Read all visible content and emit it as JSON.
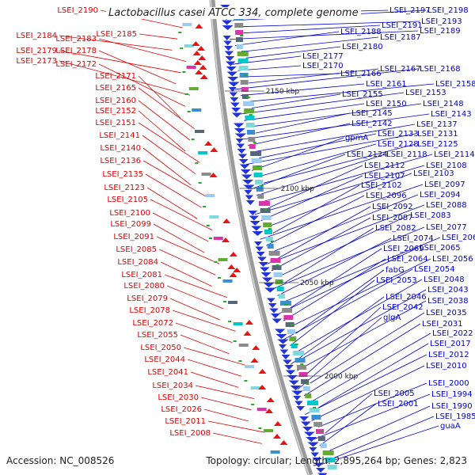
{
  "title": "Lactobacillus casei ATCC 334, complete genome",
  "footer": {
    "accession": "Accession: NC_008526",
    "summary": "Topology: circular; Length: 2,895,264 bp; Genes: 2,823"
  },
  "colors": {
    "left_label": "#dd0000",
    "right_label": "#0000cc",
    "backbone": "#999999",
    "gene_reverse": "#2233dd",
    "gene_forward": "#ee1111"
  },
  "ticks": [
    "2150 kbp",
    "2100 kbp",
    "2050 kbp",
    "2000 kbp"
  ],
  "left_labels": [
    "LSEI_2190",
    "LSEI_2185",
    "LSEI_2184",
    "LSEI_2183",
    "LSEI_2179",
    "LSEI_2178",
    "LSEI_2173",
    "LSEI_2172",
    "LSEI_2171",
    "LSEI_2165",
    "LSEI_2160",
    "LSEI_2152",
    "LSEI_2151",
    "LSEI_2141",
    "LSEI_2140",
    "LSEI_2136",
    "LSEI_2135",
    "LSEI_2123",
    "LSEI_2105",
    "LSEI_2100",
    "LSEI_2099",
    "LSEI_2091",
    "LSEI_2085",
    "LSEI_2084",
    "LSEI_2081",
    "LSEI_2080",
    "LSEI_2079",
    "LSEI_2078",
    "LSEI_2072",
    "LSEI_2055",
    "LSEI_2050",
    "LSEI_2044",
    "LSEI_2041",
    "LSEI_2034",
    "LSEI_2030",
    "LSEI_2026",
    "LSEI_2011",
    "LSEI_2008"
  ],
  "right_labels": [
    "LSEI_2197",
    "LSEI_2198",
    "LSEI_2193",
    "LSEI_2191",
    "LSEI_2189",
    "LSEI_2188",
    "LSEI_2187",
    "LSEI_2180",
    "LSEI_2177",
    "LSEI_2170",
    "LSEI_2166",
    "LSEI_2167",
    "LSEI_2168",
    "LSEI_2161",
    "LSEI_2158",
    "LSEI_2155",
    "LSEI_2153",
    "LSEI_2150",
    "LSEI_2148",
    "LSEI_2145",
    "LSEI_2143",
    "LSEI_2142",
    "LSEI_2137",
    "LSEI_2133",
    "LSEI_2131",
    "gpmA",
    "LSEI_2128",
    "LSEI_2125",
    "LSEI_2124",
    "LSEI_2118",
    "LSEI_2114",
    "LSEI_2112",
    "LSEI_2108",
    "LSEI_2107",
    "LSEI_2103",
    "LSEI_2102",
    "LSEI_2097",
    "LSEI_2096",
    "LSEI_2094",
    "LSEI_2092",
    "LSEI_2088",
    "LSEI_2087",
    "LSEI_2083",
    "LSEI_2082",
    "LSEI_2077",
    "LSEI_2074",
    "LSEI_2068",
    "LSEI_2069",
    "LSEI_2065",
    "LSEI_2064",
    "LSEI_2056",
    "fabG",
    "LSEI_2054",
    "LSEI_2053",
    "LSEI_2048",
    "LSEI_2043",
    "LSEI_2046",
    "LSEI_2038",
    "LSEI_2042",
    "LSEI_2035",
    "glgA",
    "LSEI_2031",
    "LSEI_2022",
    "LSEI_2017",
    "LSEI_2012",
    "LSEI_2010",
    "LSEI_2000",
    "LSEI_2005",
    "LSEI_1994",
    "LSEI_2001",
    "LSEI_1990",
    "LSEI_1985",
    "guaA"
  ]
}
